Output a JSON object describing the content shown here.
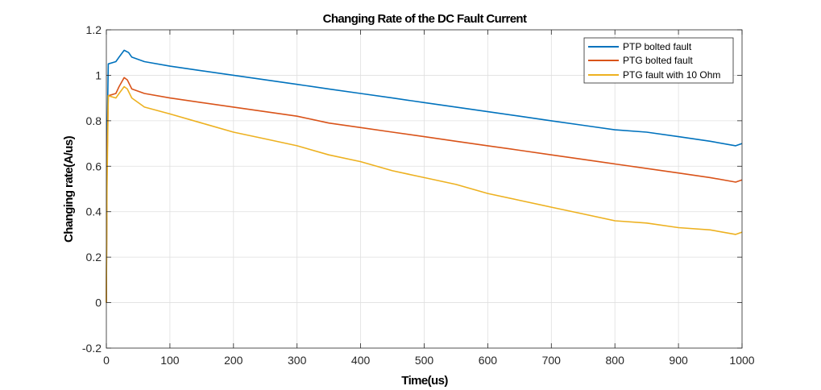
{
  "chart_data": {
    "type": "line",
    "title": "Changing Rate of the DC Fault Current",
    "xlabel": "Time(us)",
    "ylabel": "Changing rate(A/us)",
    "xlim": [
      0,
      1000
    ],
    "ylim": [
      -0.2,
      1.2
    ],
    "xticks": [
      0,
      100,
      200,
      300,
      400,
      500,
      600,
      700,
      800,
      900,
      1000
    ],
    "yticks": [
      -0.2,
      0,
      0.2,
      0.4,
      0.6,
      0.8,
      1,
      1.2
    ],
    "ytick_labels": [
      "-0.2",
      "0",
      "0.2",
      "0.4",
      "0.6",
      "0.8",
      "1",
      "1.2"
    ],
    "grid": true,
    "legend_position": "top-right",
    "series": [
      {
        "name": "PTP bolted fault",
        "color": "#0072BD",
        "x": [
          0,
          1,
          3,
          15,
          20,
          28,
          35,
          40,
          60,
          100,
          150,
          200,
          250,
          300,
          350,
          400,
          450,
          500,
          550,
          600,
          650,
          700,
          750,
          800,
          850,
          900,
          950,
          990,
          1000
        ],
        "y": [
          0.0,
          0.7,
          1.05,
          1.06,
          1.08,
          1.11,
          1.1,
          1.08,
          1.06,
          1.04,
          1.02,
          1.0,
          0.98,
          0.96,
          0.94,
          0.92,
          0.9,
          0.88,
          0.86,
          0.84,
          0.82,
          0.8,
          0.78,
          0.76,
          0.75,
          0.73,
          0.71,
          0.69,
          0.7
        ]
      },
      {
        "name": "PTG bolted fault",
        "color": "#D95319",
        "x": [
          0,
          1,
          3,
          15,
          20,
          28,
          33,
          40,
          60,
          100,
          150,
          200,
          250,
          300,
          350,
          400,
          450,
          500,
          550,
          600,
          650,
          700,
          750,
          800,
          850,
          900,
          950,
          990,
          1000
        ],
        "y": [
          0.0,
          0.6,
          0.91,
          0.92,
          0.95,
          0.99,
          0.98,
          0.94,
          0.92,
          0.9,
          0.88,
          0.86,
          0.84,
          0.82,
          0.79,
          0.77,
          0.75,
          0.73,
          0.71,
          0.69,
          0.67,
          0.65,
          0.63,
          0.61,
          0.59,
          0.57,
          0.55,
          0.53,
          0.54
        ]
      },
      {
        "name": "PTG fault with 10 Ohm",
        "color": "#EDB120",
        "x": [
          0,
          1,
          3,
          15,
          20,
          28,
          33,
          40,
          60,
          100,
          150,
          200,
          250,
          300,
          350,
          400,
          450,
          500,
          550,
          600,
          650,
          700,
          750,
          800,
          850,
          900,
          950,
          990,
          1000
        ],
        "y": [
          0.0,
          0.5,
          0.91,
          0.9,
          0.92,
          0.95,
          0.94,
          0.9,
          0.86,
          0.83,
          0.79,
          0.75,
          0.72,
          0.69,
          0.65,
          0.62,
          0.58,
          0.55,
          0.52,
          0.48,
          0.45,
          0.42,
          0.39,
          0.36,
          0.35,
          0.33,
          0.32,
          0.3,
          0.31
        ]
      }
    ]
  }
}
